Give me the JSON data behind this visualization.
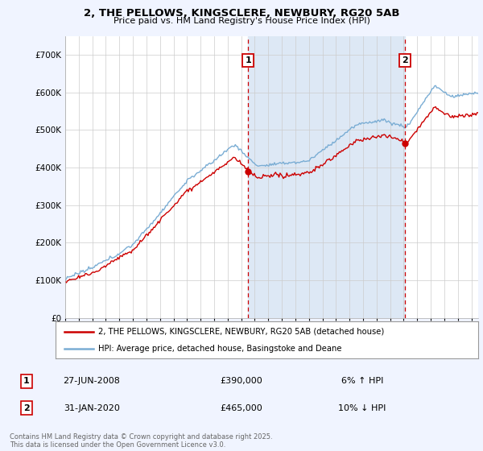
{
  "title_line1": "2, THE PELLOWS, KINGSCLERE, NEWBURY, RG20 5AB",
  "title_line2": "Price paid vs. HM Land Registry's House Price Index (HPI)",
  "legend_line1": "2, THE PELLOWS, KINGSCLERE, NEWBURY, RG20 5AB (detached house)",
  "legend_line2": "HPI: Average price, detached house, Basingstoke and Deane",
  "sale1_date": "27-JUN-2008",
  "sale1_price": "£390,000",
  "sale1_hpi": "6% ↑ HPI",
  "sale1_year": 2008.5,
  "sale1_price_val": 390000,
  "sale2_date": "31-JAN-2020",
  "sale2_price": "£465,000",
  "sale2_hpi": "10% ↓ HPI",
  "sale2_year": 2020.08,
  "sale2_price_val": 465000,
  "footer": "Contains HM Land Registry data © Crown copyright and database right 2025.\nThis data is licensed under the Open Government Licence v3.0.",
  "bg_color": "#f0f4ff",
  "plot_bg_color": "#ffffff",
  "red_color": "#cc0000",
  "blue_color": "#7aadd4",
  "span_color": "#dde8f5",
  "grid_color": "#cccccc",
  "vline_color": "#cc0000",
  "ylim": [
    0,
    750000
  ],
  "yticks": [
    0,
    100000,
    200000,
    300000,
    400000,
    500000,
    600000,
    700000
  ],
  "ytick_labels": [
    "£0",
    "£100K",
    "£200K",
    "£300K",
    "£400K",
    "£500K",
    "£600K",
    "£700K"
  ],
  "xlim_start": 1995,
  "xlim_end": 2025.5
}
